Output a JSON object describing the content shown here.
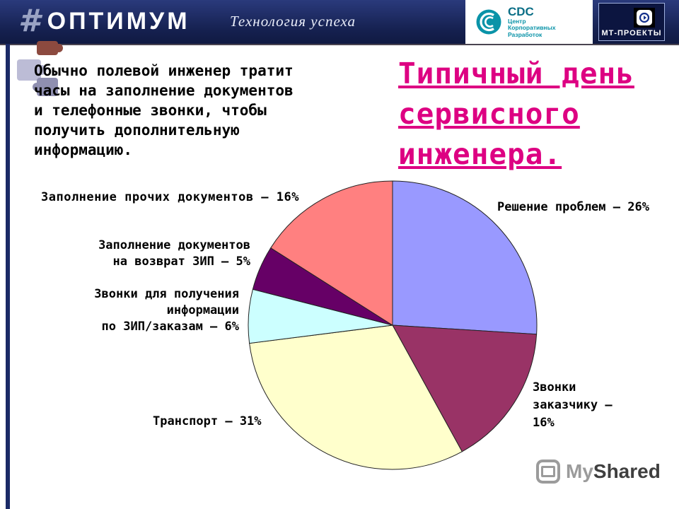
{
  "header": {
    "hash": "#",
    "brand": "ОПТИМУМ",
    "tagline": "Технология успеха",
    "cdc": {
      "abbr": "CDC",
      "sub": "Центр\nКорпоративных\nРазработок"
    },
    "mt_label": "МТ-ПРОЕКТЫ"
  },
  "slide": {
    "paragraph": "Обычно полевой инженер тратит\nчасы на заполнение документов\nи телефонные звонки, чтобы\nполучить дополнительную\nинформацию.",
    "title": "Типичный день\nсервисного\nинженера."
  },
  "chart_data": {
    "type": "pie",
    "title": "Типичный день сервисного инженера",
    "direction": "clockwise",
    "start_angle_deg": -90,
    "slices": [
      {
        "label": "Решение проблем",
        "value_pct": 26,
        "color": "#9999FF"
      },
      {
        "label": "Звонки заказчику",
        "value_pct": 16,
        "color": "#993366"
      },
      {
        "label": "Транспорт",
        "value_pct": 31,
        "color": "#FFFFCC"
      },
      {
        "label": "Звонки для получения информации по ЗИП/заказам",
        "value_pct": 6,
        "color": "#CCFFFF"
      },
      {
        "label": "Заполнение документов на возврат ЗИП",
        "value_pct": 5,
        "color": "#660066"
      },
      {
        "label": "Заполнение прочих документов",
        "value_pct": 16,
        "color": "#FF8080"
      }
    ],
    "labels_display": {
      "other_docs": "Заполнение прочих документов – 16%",
      "return_docs": "Заполнение документов\nна возврат ЗИП – 5%",
      "info_calls": "Звонки для получения\nинформации\nпо ЗИП/заказам – 6%",
      "transport": "Транспорт – 31%",
      "problem_solving": "Решение проблем – 26%",
      "customer_calls": "Звонки\nзаказчику –\n16%"
    }
  },
  "watermark": {
    "my": "My",
    "shared": "Shared"
  }
}
